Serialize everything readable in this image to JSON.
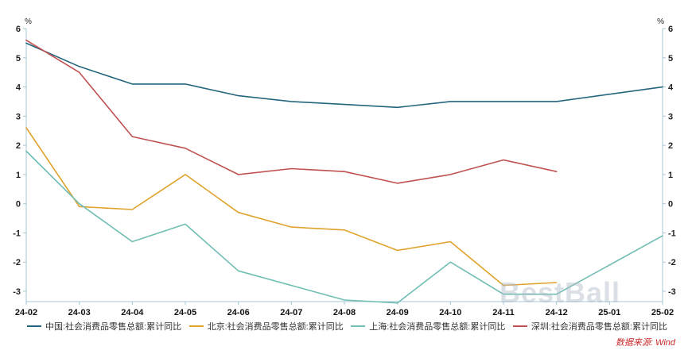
{
  "chart_data": {
    "type": "line",
    "title": "",
    "unit": "%",
    "grid": false,
    "legend_position": "bottom",
    "axis_color": "#a9c4d4",
    "ylim": [
      -3.35,
      6.1
    ],
    "yticks": [
      6,
      5,
      4,
      3,
      2,
      1,
      0,
      -1,
      -2,
      -3
    ],
    "categories": [
      "24-02",
      "24-03",
      "24-04",
      "24-05",
      "24-06",
      "24-07",
      "24-08",
      "24-09",
      "24-10",
      "24-11",
      "24-12",
      "25-01",
      "25-02"
    ],
    "series": [
      {
        "name": "中国:社会消费品零售总额:累计同比",
        "color": "#23657c",
        "values": [
          5.5,
          4.7,
          4.1,
          4.1,
          3.7,
          3.5,
          3.4,
          3.3,
          3.5,
          3.5,
          3.5,
          null,
          4.0
        ]
      },
      {
        "name": "北京:社会消费品零售总额:累计同比",
        "color": "#dfa32b",
        "values": [
          2.6,
          -0.1,
          -0.2,
          1.0,
          -0.3,
          -0.8,
          -0.9,
          -1.6,
          -1.3,
          -2.8,
          -2.7,
          null,
          null
        ]
      },
      {
        "name": "上海:社会消费品零售总额:累计同比",
        "color": "#6fbdb3",
        "values": [
          1.8,
          0.0,
          -1.3,
          -0.7,
          -2.3,
          -2.8,
          -3.3,
          -3.4,
          -2.0,
          -3.1,
          -3.1,
          null,
          -1.1
        ]
      },
      {
        "name": "深圳:社会消费品零售总额:累计同比",
        "color": "#c05151",
        "values": [
          5.6,
          4.5,
          2.3,
          1.9,
          1.0,
          1.2,
          1.1,
          0.7,
          1.0,
          1.5,
          1.1,
          null,
          null
        ]
      }
    ]
  },
  "source_note": "数据来源: Wind",
  "watermark": "BestBall"
}
